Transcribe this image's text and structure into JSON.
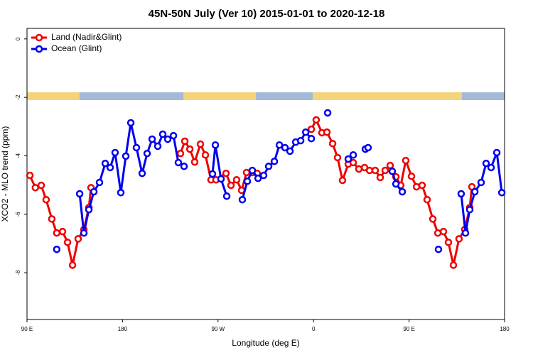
{
  "chart_data": {
    "type": "line",
    "title": "45N-50N July (Ver 10)   2015-01-01 to 2020-12-18",
    "x_label": "Longitude (deg E)",
    "y_label": "XCO2 - MLO trend (ppm)",
    "xlim": [
      90,
      540
    ],
    "xticks": [
      {
        "value": 90,
        "label": "90 E"
      },
      {
        "value": 180,
        "label": "180"
      },
      {
        "value": 270,
        "label": "90 W"
      },
      {
        "value": 360,
        "label": "0"
      },
      {
        "value": 450,
        "label": "90 E"
      },
      {
        "value": 540,
        "label": "180"
      }
    ],
    "ylim": [
      -9.6,
      0.36
    ],
    "yticks": [
      0,
      -2,
      -4,
      -6,
      -8
    ],
    "legend": "top-left",
    "series": [
      {
        "name": "Land (Nadir&Glint)",
        "color": "#ee0000",
        "x": [
          92.7,
          97.9,
          103.4,
          108,
          113.4,
          118,
          123.5,
          128.2,
          132.9,
          138.2,
          143.6,
          148.3,
          150.3,
          null,
          234.6,
          238.7,
          243.4,
          248,
          253.4,
          258.1,
          263.4,
          268.1,
          277.5,
          282.2,
          287.5,
          292.2,
          296.9,
          302.3,
          306.9,
          null,
          357.9,
          362.5,
          367.9,
          372.6,
          378,
          382.6,
          387.3,
          392.7,
          397.4,
          402.7,
          408.1,
          412.8,
          418.1,
          422.8,
          427.5,
          432.2,
          437.6,
          442.2,
          446.9,
          452.3,
          457,
          462.3,
          467,
          472.4,
          477.1,
          482.4,
          487.1,
          491.8,
          497.1,
          502.5,
          507.2,
          509.2
        ],
        "values": [
          -4.67,
          -5.09,
          -5.01,
          -5.5,
          -6.16,
          -6.64,
          -6.59,
          -6.96,
          -7.74,
          -6.84,
          -6.52,
          -5.77,
          -5.09,
          null,
          -3.92,
          -3.5,
          -3.77,
          -4.21,
          -3.6,
          -3.97,
          -4.82,
          -4.82,
          -4.6,
          -5.01,
          -4.82,
          -5.18,
          -4.57,
          -4.57,
          -4.6,
          null,
          -3.09,
          -2.77,
          -3.21,
          -3.19,
          -3.58,
          -4.06,
          -4.84,
          -4.28,
          -4.23,
          -4.45,
          -4.4,
          -4.5,
          -4.5,
          -4.74,
          -4.5,
          -4.33,
          -4.72,
          -5.01,
          -4.16,
          -4.7,
          -5.06,
          -5.01,
          -5.5,
          -6.16,
          -6.64,
          -6.59,
          -6.96,
          -7.74,
          -6.84,
          -6.52,
          -5.77,
          -5.06
        ]
      },
      {
        "name": "Ocean (Glint)",
        "color": "#0000ee",
        "x": [
          118,
          null,
          139.6,
          143.6,
          148.3,
          153,
          158.3,
          163.7,
          168.4,
          173,
          178.4,
          183.1,
          187.8,
          193.1,
          198.5,
          203.2,
          207.9,
          213.2,
          217.9,
          222.6,
          228,
          232.6,
          238,
          null,
          264.8,
          267.5,
          272.8,
          278.2,
          null,
          292.9,
          297.6,
          302.3,
          307.7,
          313,
          317.7,
          323.1,
          327.8,
          333.1,
          337.8,
          343.2,
          347.9,
          352.6,
          357.9,
          null,
          373.3,
          null,
          392.7,
          397.4,
          null,
          408.8,
          411.4,
          null,
          434.2,
          437.6,
          443.6,
          null,
          477.7,
          null,
          499.1,
          503.2,
          507.2,
          512,
          517.9,
          522.6,
          527.3,
          532.7,
          537.4
        ],
        "values": [
          -7.2,
          null,
          -5.3,
          -6.64,
          -5.84,
          -5.23,
          -4.91,
          -4.26,
          -4.4,
          -3.89,
          -5.26,
          -4.01,
          -2.87,
          -3.72,
          -4.6,
          -3.92,
          -3.43,
          -3.67,
          -3.26,
          -3.43,
          -3.31,
          -4.23,
          -4.36,
          null,
          -4.62,
          -3.63,
          -4.79,
          -5.38,
          null,
          -5.5,
          -4.87,
          -4.5,
          -4.77,
          -4.67,
          -4.36,
          -4.19,
          -3.63,
          -3.72,
          -3.84,
          -3.53,
          -3.48,
          -3.19,
          -3.41,
          null,
          -2.53,
          null,
          -4.11,
          -3.97,
          null,
          -3.77,
          -3.72,
          null,
          -4.53,
          -4.96,
          -5.23,
          null,
          -7.2,
          null,
          -5.3,
          -6.64,
          -5.84,
          -5.23,
          -4.91,
          -4.26,
          -4.4,
          -3.89,
          -5.26
        ]
      }
    ]
  }
}
